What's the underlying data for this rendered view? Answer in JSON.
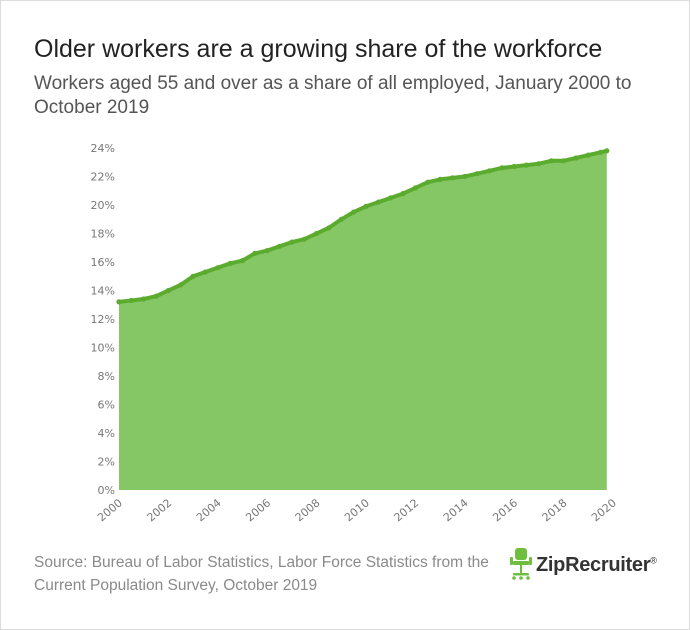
{
  "title": "Older workers are a growing share of the workforce",
  "subtitle": "Workers aged 55 and over as a share of all employed, January 2000 to October 2019",
  "source": "Source: Bureau of Labor Statistics, Labor Force Statistics from the Current Population Survey, October 2019",
  "logo": {
    "text": "ZipRecruiter",
    "symbol": "®",
    "icon": "office-chair-icon",
    "color": "#6fbf3f"
  },
  "colors": {
    "area_fill": "#86c765",
    "line": "#5aab2e",
    "tick_text": "#777777"
  },
  "chart_data": {
    "type": "area",
    "x_unit": "year",
    "xlim": [
      2000,
      2020
    ],
    "ylim": [
      0,
      24
    ],
    "x_ticks": [
      2000,
      2002,
      2004,
      2006,
      2008,
      2010,
      2012,
      2014,
      2016,
      2018,
      2020
    ],
    "x_tick_labels": [
      "2000",
      "2002",
      "2004",
      "2006",
      "2008",
      "2010",
      "2012",
      "2014",
      "2016",
      "2018",
      "2020"
    ],
    "y_ticks": [
      0,
      2,
      4,
      6,
      8,
      10,
      12,
      14,
      16,
      18,
      20,
      22,
      24
    ],
    "y_tick_labels": [
      "0%",
      "2%",
      "4%",
      "6%",
      "8%",
      "10%",
      "12%",
      "14%",
      "16%",
      "18%",
      "20%",
      "22%",
      "24%"
    ],
    "grid": false,
    "series": [
      {
        "x": [
          2000.0,
          2000.5,
          2001.0,
          2001.5,
          2002.0,
          2002.5,
          2003.0,
          2003.5,
          2004.0,
          2004.5,
          2005.0,
          2005.5,
          2006.0,
          2006.5,
          2007.0,
          2007.5,
          2008.0,
          2008.5,
          2009.0,
          2009.5,
          2010.0,
          2010.5,
          2011.0,
          2011.5,
          2012.0,
          2012.5,
          2013.0,
          2013.5,
          2014.0,
          2014.5,
          2015.0,
          2015.5,
          2016.0,
          2016.5,
          2017.0,
          2017.5,
          2018.0,
          2018.5,
          2019.0,
          2019.5,
          2019.75
        ],
        "values": [
          13.2,
          13.3,
          13.4,
          13.6,
          14.0,
          14.4,
          15.0,
          15.3,
          15.6,
          15.9,
          16.1,
          16.6,
          16.8,
          17.1,
          17.4,
          17.6,
          18.0,
          18.4,
          19.0,
          19.5,
          19.9,
          20.2,
          20.5,
          20.8,
          21.2,
          21.6,
          21.8,
          21.9,
          22.0,
          22.2,
          22.4,
          22.6,
          22.7,
          22.8,
          22.9,
          23.1,
          23.1,
          23.3,
          23.5,
          23.7,
          23.8
        ]
      }
    ]
  }
}
